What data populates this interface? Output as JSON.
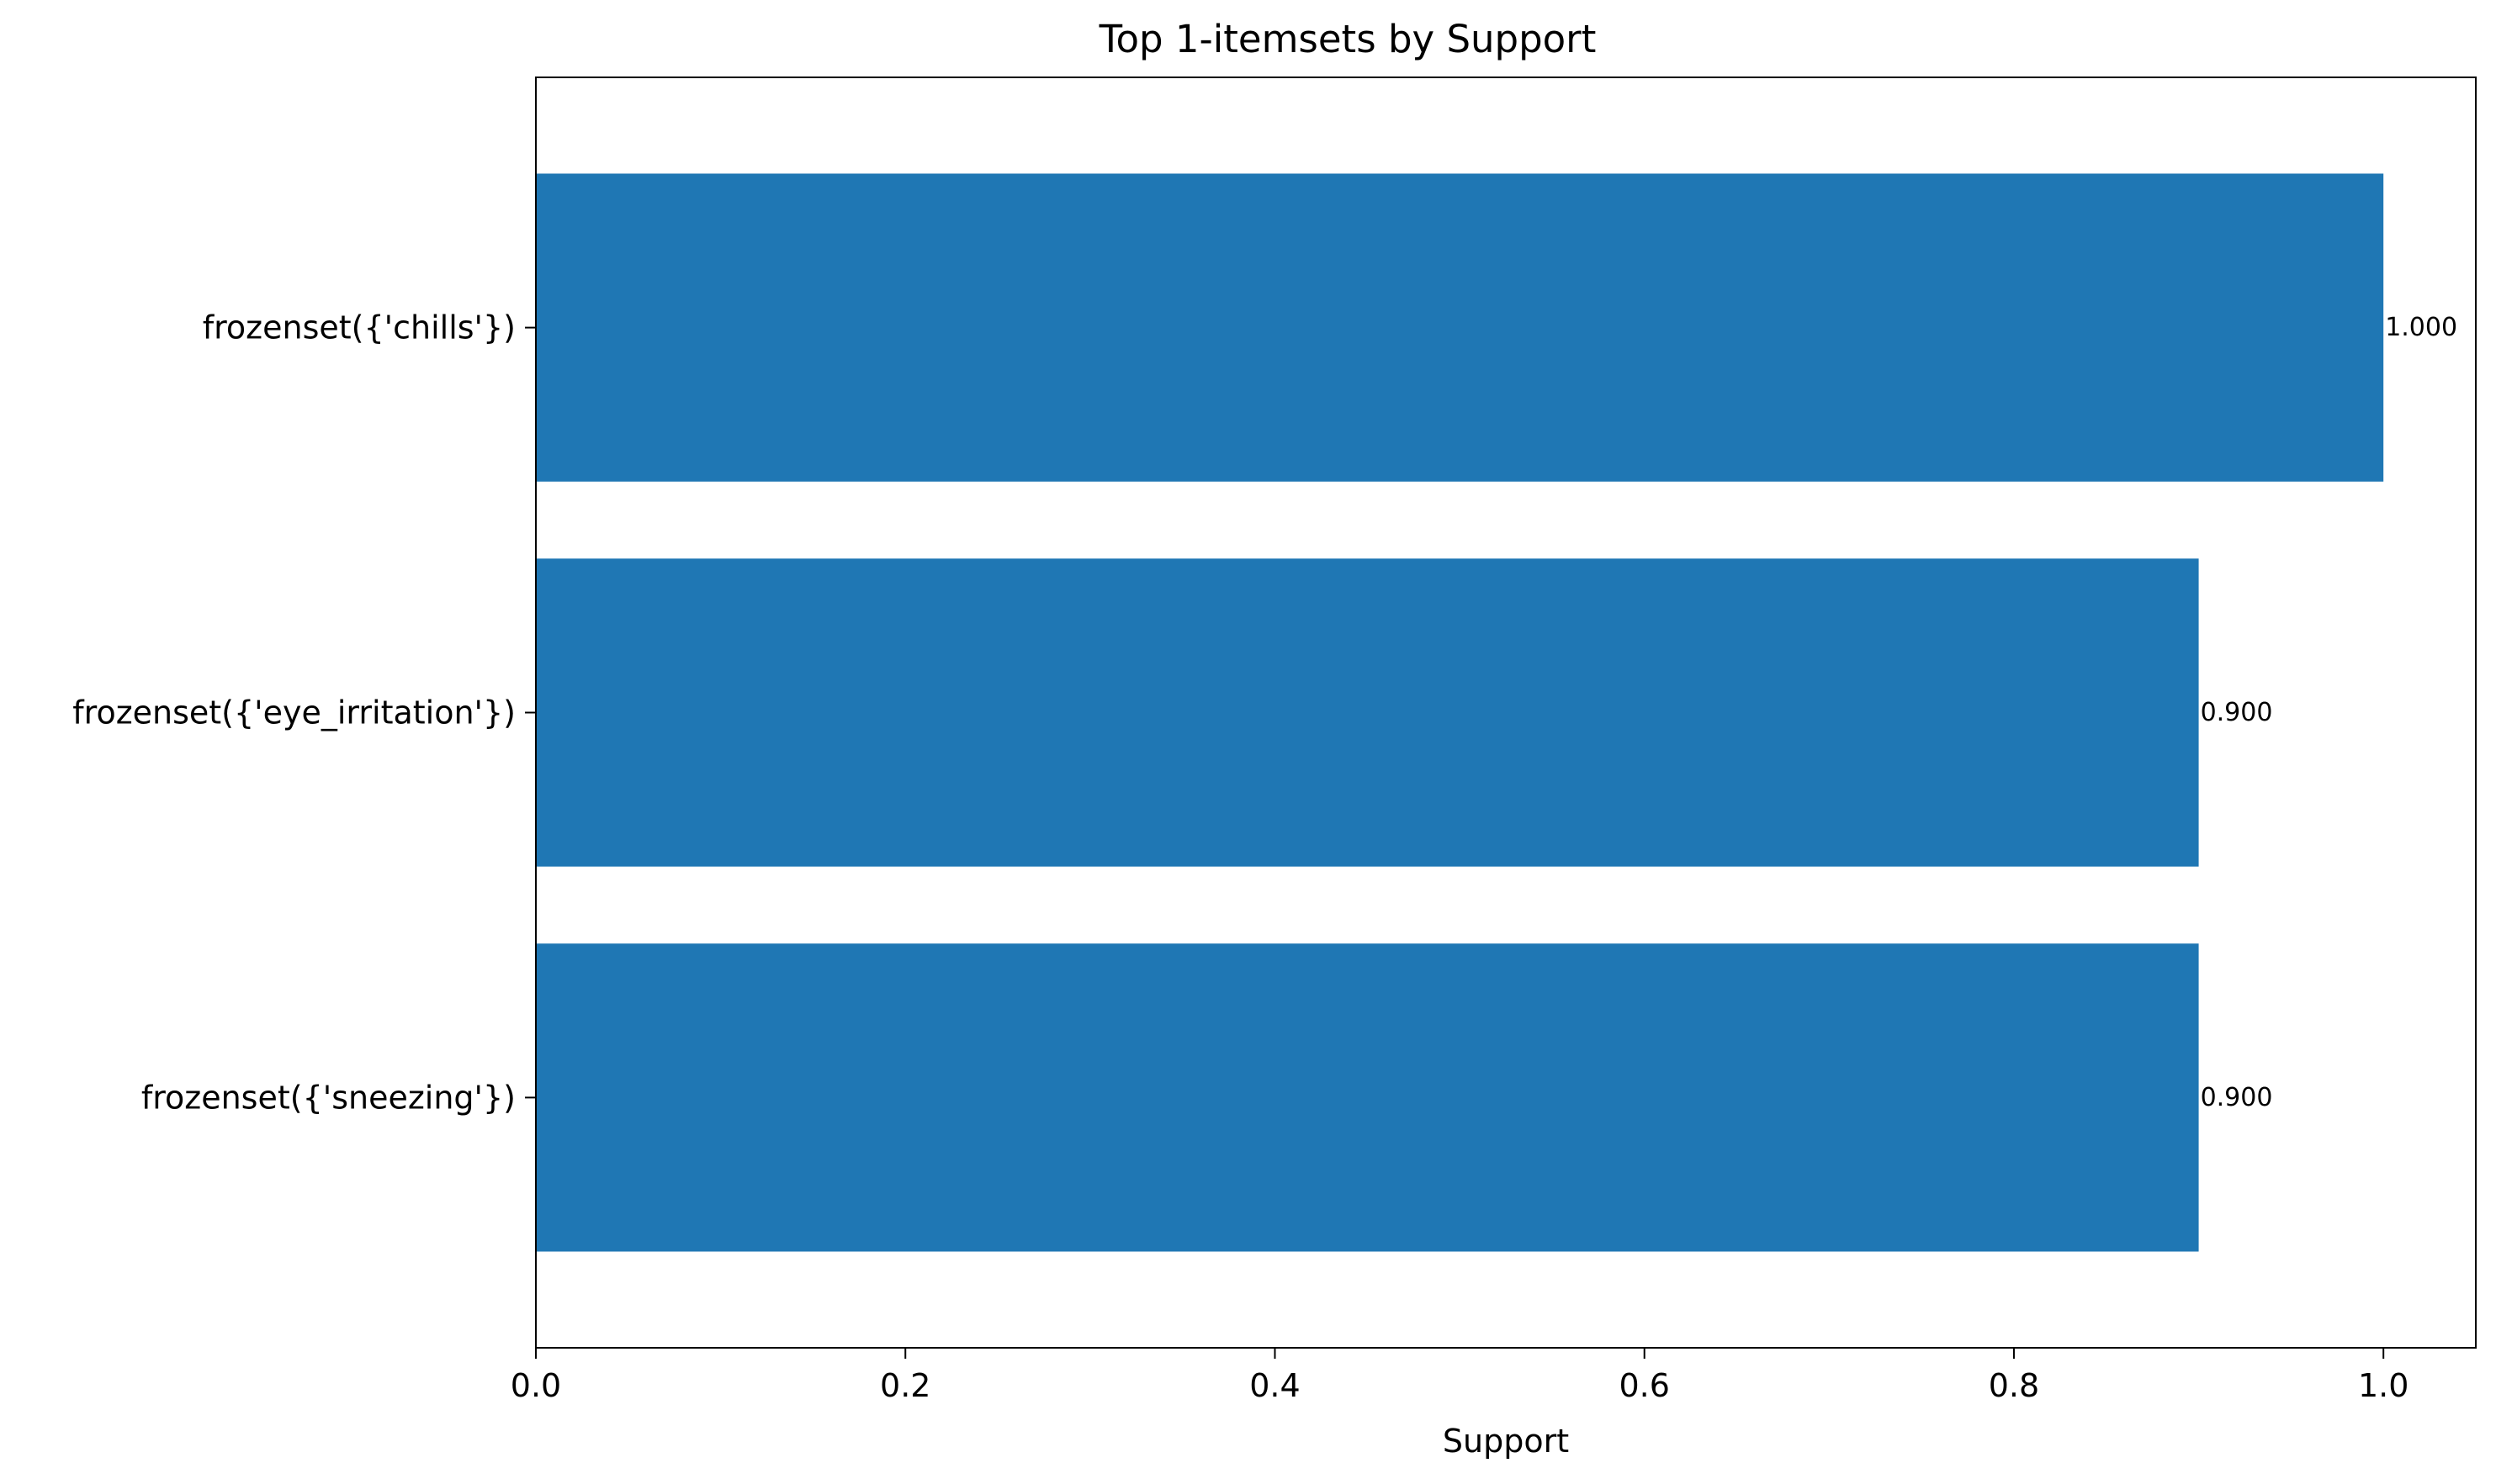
{
  "chart_data": {
    "type": "bar",
    "orientation": "horizontal",
    "title": "Top 1-itemsets by Support",
    "xlabel": "Support",
    "ylabel": "",
    "categories": [
      "frozenset({'chills'})",
      "frozenset({'eye_irritation'})",
      "frozenset({'sneezing'})"
    ],
    "values": [
      1.0,
      0.9,
      0.9
    ],
    "value_labels": [
      "1.000",
      "0.900",
      "0.900"
    ],
    "xlim": [
      0,
      1.05
    ],
    "xticks": [
      0.0,
      0.2,
      0.4,
      0.6,
      0.8,
      1.0
    ],
    "xtick_labels": [
      "0.0",
      "0.2",
      "0.4",
      "0.6",
      "0.8",
      "1.0"
    ],
    "grid": false,
    "legend": "none",
    "bar_color": "#1f77b4"
  }
}
